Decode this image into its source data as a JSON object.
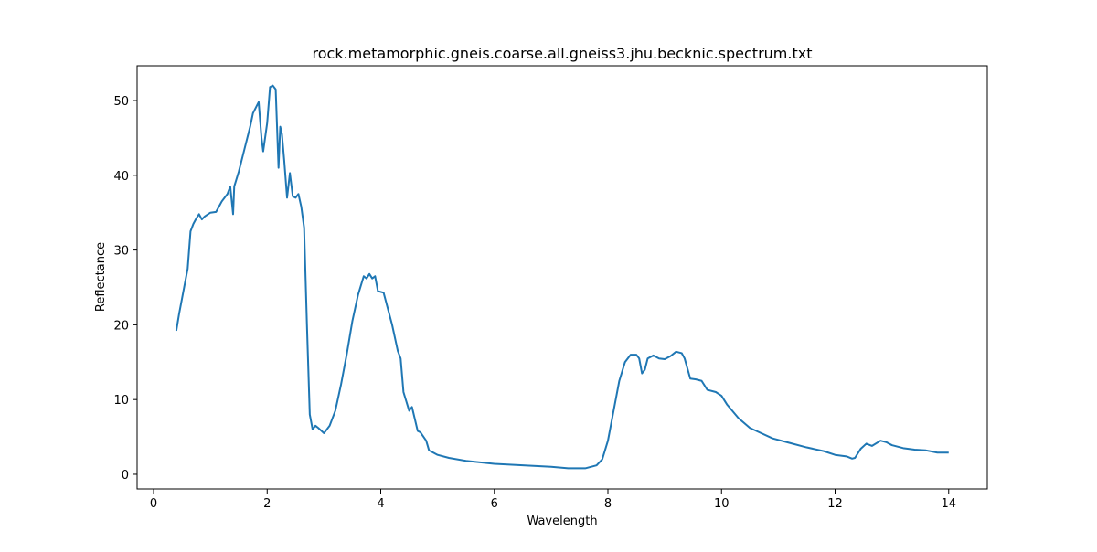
{
  "chart_data": {
    "type": "line",
    "title": "rock.metamorphic.gneis.coarse.all.gneiss3.jhu.becknic.spectrum.txt",
    "x_label": "Wavelength",
    "y_label": "Reflectance",
    "xlim": [
      -0.29,
      14.68
    ],
    "ylim": [
      -1.96,
      54.65
    ],
    "xticks": [
      0,
      2,
      4,
      6,
      8,
      10,
      12,
      14
    ],
    "yticks": [
      0,
      10,
      20,
      30,
      40,
      50
    ],
    "grid": false,
    "x": [
      0.4,
      0.45,
      0.5,
      0.55,
      0.6,
      0.65,
      0.7,
      0.75,
      0.8,
      0.85,
      0.9,
      1.0,
      1.1,
      1.2,
      1.3,
      1.35,
      1.4,
      1.42,
      1.5,
      1.6,
      1.7,
      1.75,
      1.85,
      1.9,
      1.93,
      2.0,
      2.05,
      2.1,
      2.15,
      2.2,
      2.23,
      2.26,
      2.3,
      2.35,
      2.4,
      2.45,
      2.5,
      2.55,
      2.6,
      2.65,
      2.7,
      2.75,
      2.8,
      2.85,
      2.9,
      3.0,
      3.1,
      3.2,
      3.3,
      3.4,
      3.5,
      3.6,
      3.7,
      3.75,
      3.8,
      3.85,
      3.9,
      3.95,
      4.05,
      4.2,
      4.3,
      4.35,
      4.4,
      4.5,
      4.55,
      4.65,
      4.7,
      4.8,
      4.85,
      5.0,
      5.2,
      5.5,
      6.0,
      6.5,
      7.0,
      7.3,
      7.6,
      7.8,
      7.9,
      8.0,
      8.1,
      8.2,
      8.3,
      8.4,
      8.5,
      8.55,
      8.6,
      8.65,
      8.7,
      8.8,
      8.9,
      9.0,
      9.1,
      9.2,
      9.3,
      9.35,
      9.45,
      9.55,
      9.65,
      9.75,
      9.9,
      10.0,
      10.1,
      10.3,
      10.5,
      10.7,
      10.9,
      11.2,
      11.5,
      11.8,
      12.0,
      12.2,
      12.3,
      12.35,
      12.45,
      12.55,
      12.65,
      12.8,
      12.9,
      13.0,
      13.2,
      13.4,
      13.6,
      13.8,
      14.0
    ],
    "series": [
      {
        "color": "#1f77b4",
        "values": [
          19.2,
          21.5,
          23.5,
          25.5,
          27.5,
          32.5,
          33.5,
          34.2,
          34.8,
          34.1,
          34.5,
          35.0,
          35.1,
          36.5,
          37.5,
          38.5,
          34.8,
          38.5,
          40.5,
          43.5,
          46.5,
          48.3,
          49.8,
          45,
          43.2,
          47,
          51.8,
          52,
          51.5,
          41,
          46.5,
          45.5,
          42,
          37,
          40.3,
          37.2,
          37,
          37.5,
          35.8,
          33,
          20,
          8,
          6,
          6.5,
          6.2,
          5.5,
          6.5,
          8.5,
          12,
          16,
          20.5,
          24,
          26.5,
          26.2,
          26.8,
          26.2,
          26.5,
          24.5,
          24.3,
          20,
          16.5,
          15.5,
          11,
          8.5,
          9,
          5.8,
          5.6,
          4.5,
          3.2,
          2.6,
          2.2,
          1.8,
          1.4,
          1.2,
          1.0,
          0.8,
          0.8,
          1.2,
          2,
          4.5,
          8.5,
          12.5,
          15,
          16,
          16,
          15.5,
          13.5,
          14,
          15.5,
          15.9,
          15.5,
          15.4,
          15.8,
          16.4,
          16.2,
          15.5,
          12.8,
          12.7,
          12.5,
          11.3,
          11,
          10.5,
          9.3,
          7.5,
          6.2,
          5.5,
          4.8,
          4.2,
          3.6,
          3.1,
          2.6,
          2.4,
          2.1,
          2.2,
          3.4,
          4.1,
          3.8,
          4.5,
          4.3,
          3.9,
          3.5,
          3.3,
          3.2,
          2.9,
          2.9
        ]
      }
    ]
  }
}
